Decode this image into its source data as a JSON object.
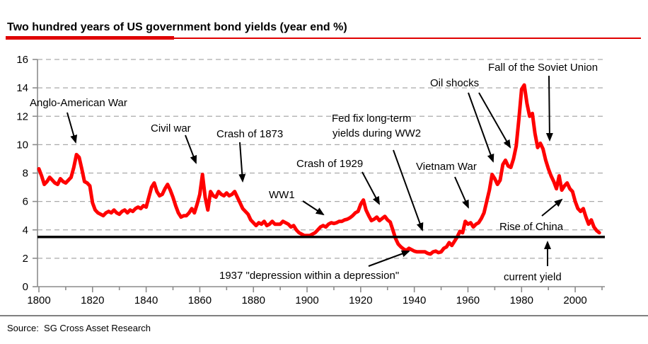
{
  "title": "Two hundred years of US government bond yields (year end %)",
  "source_line": "Source:  SG Cross Asset Research",
  "colors": {
    "series_red": "#ff0000",
    "reference_black": "#000000",
    "title_underline_red": "#e00000",
    "grid_gray": "#aaaaaa",
    "axis_gray": "#8c8c8c"
  },
  "chart_data": {
    "type": "line",
    "title": "Two hundred years of US government bond yields (year end %)",
    "xlabel": "",
    "ylabel": "",
    "xlim": [
      1800,
      2011
    ],
    "ylim": [
      0,
      16
    ],
    "grid": "horizontal dashed",
    "legend": "none",
    "x_ticks": [
      1800,
      1820,
      1840,
      1860,
      1880,
      1900,
      1920,
      1940,
      1960,
      1980,
      2000
    ],
    "x_minor_tick_step": 10,
    "y_ticks": [
      0,
      2,
      4,
      6,
      8,
      10,
      12,
      14,
      16
    ],
    "years": {
      "start": 1800,
      "end": 2009,
      "step": 1
    },
    "series": [
      {
        "name": "US government bond yield (year end %)",
        "color": "#ff0000",
        "values": [
          8.3,
          7.8,
          7.2,
          7.4,
          7.7,
          7.5,
          7.3,
          7.2,
          7.6,
          7.4,
          7.3,
          7.5,
          7.7,
          8.4,
          9.3,
          9.1,
          8.3,
          7.4,
          7.3,
          7.1,
          5.9,
          5.4,
          5.2,
          5.1,
          5.0,
          5.2,
          5.3,
          5.2,
          5.4,
          5.2,
          5.1,
          5.3,
          5.4,
          5.2,
          5.4,
          5.3,
          5.5,
          5.6,
          5.5,
          5.7,
          5.6,
          6.3,
          7.0,
          7.3,
          6.7,
          6.4,
          6.5,
          6.9,
          7.2,
          6.8,
          6.3,
          5.7,
          5.2,
          4.9,
          5.0,
          5.0,
          5.2,
          5.5,
          5.2,
          5.8,
          6.5,
          7.9,
          6.3,
          5.4,
          6.7,
          6.4,
          6.3,
          6.7,
          6.5,
          6.4,
          6.6,
          6.4,
          6.5,
          6.7,
          6.3,
          5.9,
          5.5,
          5.3,
          5.1,
          4.7,
          4.5,
          4.3,
          4.5,
          4.4,
          4.6,
          4.3,
          4.4,
          4.6,
          4.4,
          4.4,
          4.4,
          4.6,
          4.5,
          4.4,
          4.2,
          4.3,
          4.0,
          3.8,
          3.7,
          3.6,
          3.6,
          3.6,
          3.7,
          3.8,
          4.0,
          4.2,
          4.3,
          4.2,
          4.4,
          4.5,
          4.45,
          4.5,
          4.6,
          4.6,
          4.7,
          4.75,
          4.85,
          5.0,
          5.2,
          5.3,
          5.8,
          6.1,
          5.4,
          5.0,
          4.65,
          4.75,
          4.9,
          4.65,
          4.8,
          4.95,
          4.7,
          4.55,
          4.0,
          3.4,
          3.0,
          2.8,
          2.65,
          2.55,
          2.7,
          2.6,
          2.5,
          2.45,
          2.45,
          2.45,
          2.45,
          2.35,
          2.3,
          2.45,
          2.5,
          2.4,
          2.45,
          2.7,
          2.8,
          3.1,
          2.9,
          3.2,
          3.5,
          3.9,
          3.8,
          4.6,
          4.4,
          4.5,
          4.2,
          4.4,
          4.5,
          4.8,
          5.2,
          6.0,
          6.8,
          7.9,
          7.6,
          7.2,
          7.5,
          8.6,
          8.9,
          8.5,
          8.4,
          9.0,
          9.9,
          11.8,
          13.9,
          14.2,
          12.9,
          12.0,
          12.2,
          10.8,
          9.8,
          10.1,
          9.7,
          8.9,
          8.3,
          7.8,
          7.4,
          6.9,
          7.8,
          6.8,
          7.1,
          7.3,
          6.9,
          6.7,
          6.0,
          5.5,
          5.3,
          5.5,
          4.9,
          4.4,
          4.7,
          4.2,
          3.95,
          3.8
        ]
      }
    ],
    "reference_line": {
      "label": "current yield",
      "value": 3.5,
      "color": "#000000"
    },
    "annotations": [
      {
        "id": "anglo-american-war",
        "label": "Anglo-American War",
        "target_year": 1814,
        "arrows": [
          [
            95,
            159,
            107,
            201
          ]
        ]
      },
      {
        "id": "civil-war",
        "label": "Civil war",
        "target_year": 1861,
        "arrows": [
          [
            262,
            191,
            277,
            230
          ]
        ]
      },
      {
        "id": "crash-of-1873",
        "label": "Crash of 1873",
        "target_year": 1873,
        "arrows": [
          [
            339,
            201,
            343,
            256
          ]
        ]
      },
      {
        "id": "ww1",
        "label": "WW1",
        "target_year": 1917,
        "arrows": [
          [
            428,
            284,
            457,
            303
          ]
        ]
      },
      {
        "id": "crash-of-1929",
        "label": "Crash of 1929",
        "target_year": 1929,
        "arrows": [
          [
            512,
            243,
            536,
            288
          ]
        ]
      },
      {
        "id": "fed-fix-ww2",
        "label": "Fed fix long-term",
        "label2": "yields during WW2",
        "target_year": 1942,
        "arrows": [
          [
            556,
            212,
            597,
            325
          ]
        ]
      },
      {
        "id": "depression-1937",
        "label": "1937 \"depression within a depression\"",
        "target_year": 1937,
        "arrows": [
          [
            521,
            376,
            578,
            355
          ]
        ]
      },
      {
        "id": "vietnam-war",
        "label": "Vietnam War",
        "target_year": 1966,
        "arrows": [
          [
            643,
            250,
            662,
            293
          ]
        ]
      },
      {
        "id": "oil-shocks",
        "label": "Oil shocks",
        "target_year": 1973,
        "arrows": [
          [
            662,
            131,
            697,
            228
          ],
          [
            677,
            131,
            721,
            208
          ]
        ]
      },
      {
        "id": "fall-of-soviet-union",
        "label": "Fall of the Soviet Union",
        "target_year": 1990,
        "arrows": [
          [
            776,
            107,
            777,
            198
          ]
        ]
      },
      {
        "id": "rise-of-china",
        "label": "Rise of China",
        "target_year": 1995,
        "arrows": [
          [
            766,
            305,
            794,
            282
          ]
        ]
      },
      {
        "id": "current-yield",
        "label": "current yield",
        "target_value": 3.5,
        "arrows": [
          [
            774,
            376,
            774,
            342
          ]
        ]
      }
    ]
  }
}
